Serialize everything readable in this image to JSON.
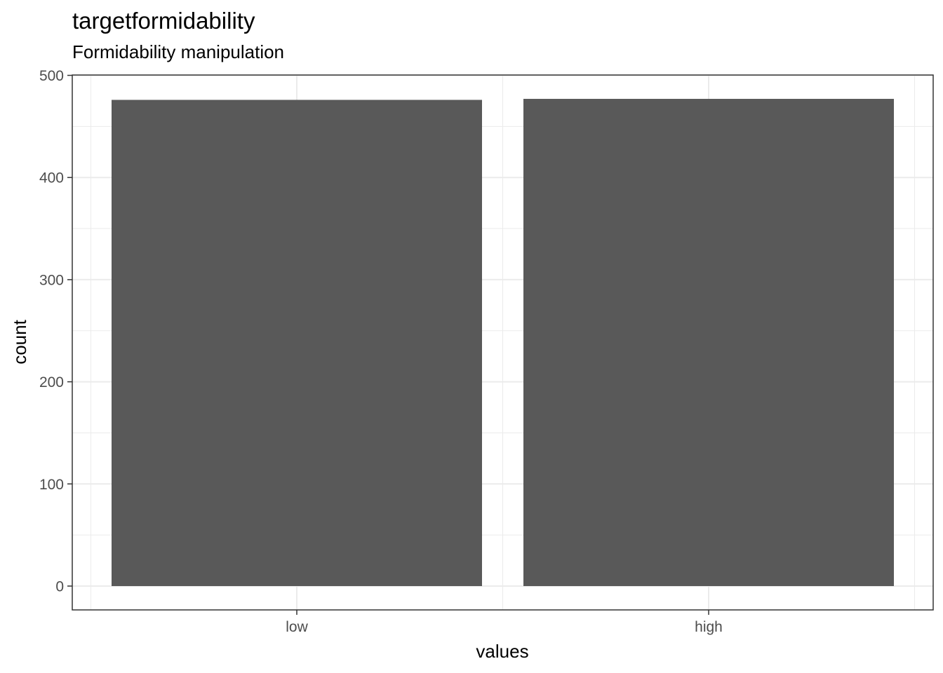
{
  "chart_data": {
    "type": "bar",
    "title": "targetformidability",
    "subtitle": "Formidability manipulation",
    "xlabel": "values",
    "ylabel": "count",
    "categories": [
      "low",
      "high"
    ],
    "values": [
      476,
      477
    ],
    "ylim": [
      0,
      500
    ],
    "yticks": [
      0,
      100,
      200,
      300,
      400,
      500
    ],
    "grid": true,
    "bar_color": "#595959",
    "grid_color": "#ebebeb",
    "panel_border_color": "#333333"
  }
}
